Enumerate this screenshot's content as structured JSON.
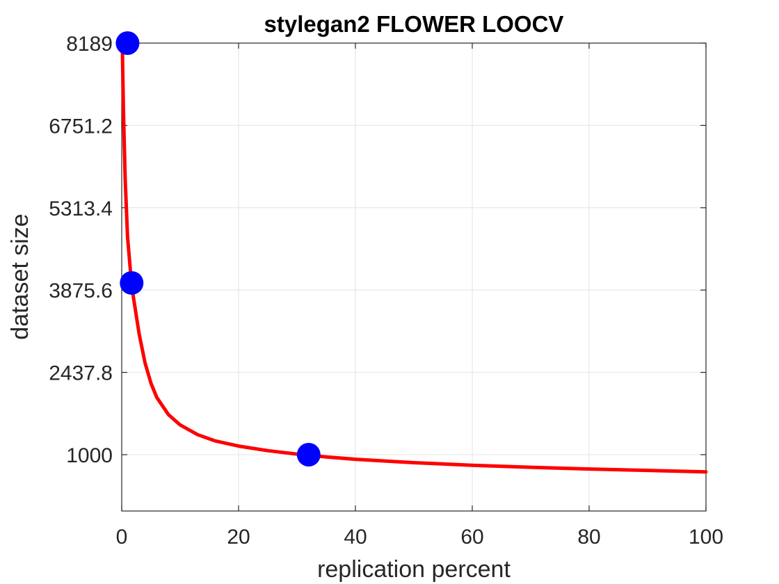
{
  "chart_data": {
    "type": "line",
    "title": "stylegan2 FLOWER LOOCV",
    "xlabel": "replication percent",
    "ylabel": "dataset size",
    "xlim": [
      0,
      100
    ],
    "ylim": [
      0,
      8189
    ],
    "x_ticks": [
      0,
      20,
      40,
      60,
      80,
      100
    ],
    "x_tick_labels": [
      "0",
      "20",
      "40",
      "60",
      "80",
      "100"
    ],
    "y_ticks": [
      1000,
      2437.8,
      3875.6,
      5313.4,
      6751.2,
      8189
    ],
    "y_tick_labels": [
      "1000",
      "2437.8",
      "3875.6",
      "5313.4",
      "6751.2",
      "8189"
    ],
    "grid": true,
    "fit_curve": {
      "color": "#ff0000",
      "x": [
        0.1,
        0.3,
        0.6,
        1,
        1.5,
        2,
        3,
        4,
        5,
        6,
        8,
        10,
        13,
        16,
        20,
        25,
        30,
        35,
        40,
        50,
        60,
        70,
        80,
        90,
        100
      ],
      "y": [
        8189,
        7000,
        5800,
        4800,
        4200,
        3750,
        3100,
        2600,
        2250,
        2000,
        1700,
        1520,
        1350,
        1240,
        1150,
        1070,
        1010,
        960,
        920,
        860,
        815,
        780,
        750,
        725,
        700
      ]
    },
    "points": {
      "color": "#0000ff",
      "x": [
        1,
        1.7,
        32
      ],
      "y": [
        8189,
        4000,
        1000
      ]
    }
  }
}
